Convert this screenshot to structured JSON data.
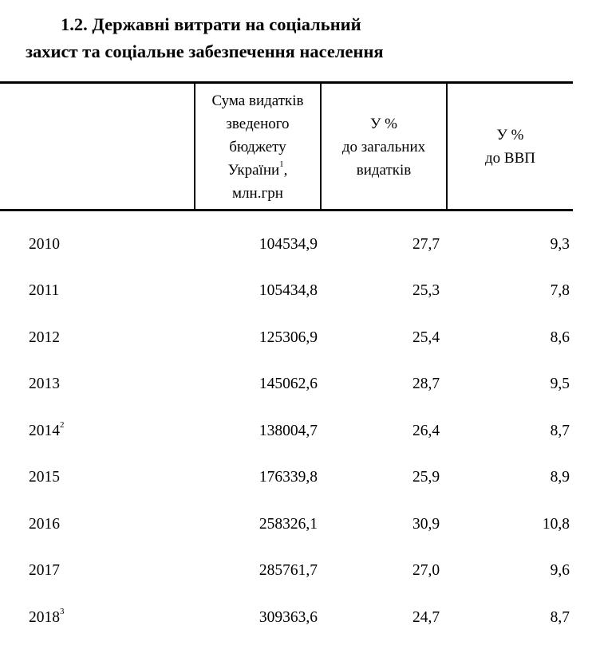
{
  "title": {
    "line1": "1.2. Державні витрати на соціальний",
    "line2": "захист та соціальне забезпечення населення"
  },
  "table": {
    "headers": {
      "col0": "",
      "col1": {
        "line1": "Сума видатків",
        "line2": "зведеного",
        "line3": "бюджету",
        "line4": "України",
        "sup": "1",
        "line4_suffix": ",",
        "line5": "млн.грн"
      },
      "col2": {
        "line1": "У %",
        "line2": "до загальних",
        "line3": "видатків"
      },
      "col3": {
        "line1": "У %",
        "line2": "до ВВП"
      }
    },
    "rows": [
      {
        "year": "2010",
        "sup": "",
        "sum": "104534,9",
        "pct_total": "27,7",
        "pct_gdp": "9,3"
      },
      {
        "year": "2011",
        "sup": "",
        "sum": "105434,8",
        "pct_total": "25,3",
        "pct_gdp": "7,8"
      },
      {
        "year": "2012",
        "sup": "",
        "sum": "125306,9",
        "pct_total": "25,4",
        "pct_gdp": "8,6"
      },
      {
        "year": "2013",
        "sup": "",
        "sum": "145062,6",
        "pct_total": "28,7",
        "pct_gdp": "9,5"
      },
      {
        "year": "2014",
        "sup": "2",
        "sum": "138004,7",
        "pct_total": "26,4",
        "pct_gdp": "8,7"
      },
      {
        "year": "2015",
        "sup": "",
        "sum": "176339,8",
        "pct_total": "25,9",
        "pct_gdp": "8,9"
      },
      {
        "year": "2016",
        "sup": "",
        "sum": "258326,1",
        "pct_total": "30,9",
        "pct_gdp": "10,8"
      },
      {
        "year": "2017",
        "sup": "",
        "sum": "285761,7",
        "pct_total": "27,0",
        "pct_gdp": "9,6"
      },
      {
        "year": "2018",
        "sup": "3",
        "sum": "309363,6",
        "pct_total": "24,7",
        "pct_gdp": "8,7"
      }
    ]
  }
}
